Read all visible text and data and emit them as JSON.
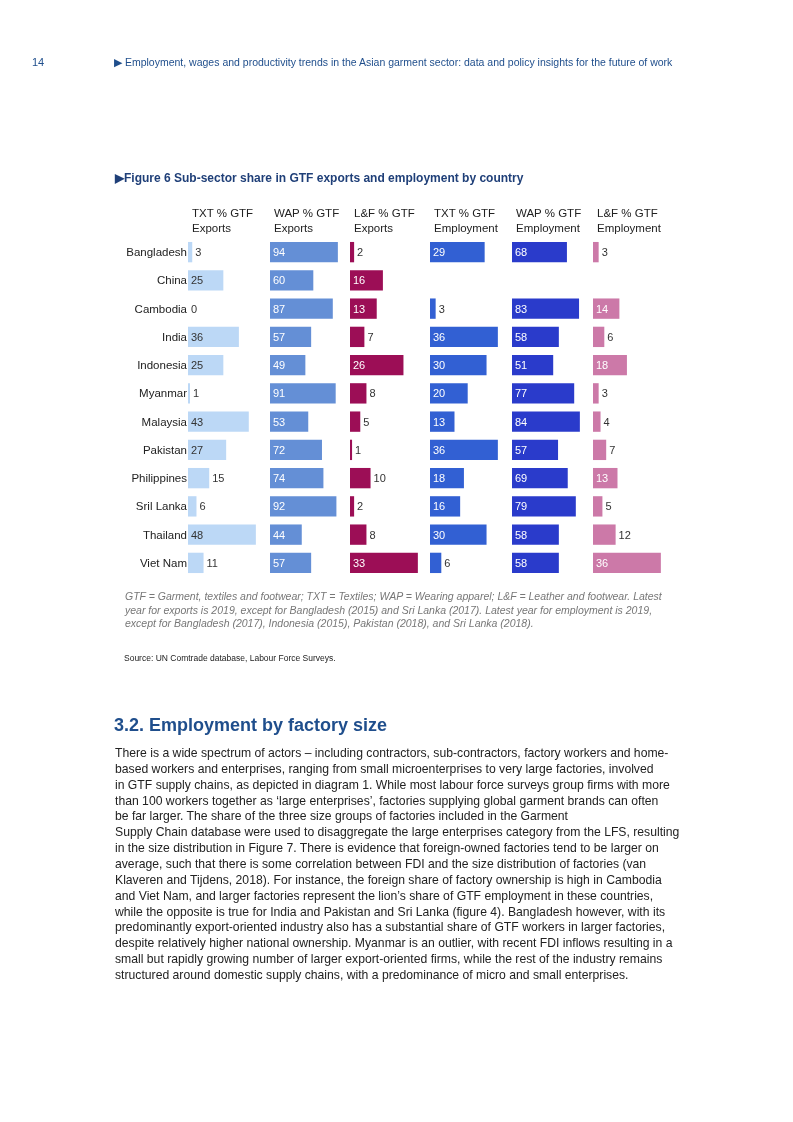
{
  "chart_data": [
    {
      "type": "bar",
      "orientation": "horizontal",
      "title": "TXT % GTF Exports",
      "categories": [
        "Bangladesh",
        "China",
        "Cambodia",
        "India",
        "Indonesia",
        "Myanmar",
        "Malaysia",
        "Pakistan",
        "Philippines",
        "Sril Lanka",
        "Thailand",
        "Viet Nam"
      ],
      "values": [
        3,
        25,
        0,
        36,
        25,
        1,
        43,
        27,
        15,
        6,
        48,
        11
      ],
      "color": "#bcd8f6",
      "data_labels": true,
      "tick_labels": "y",
      "annotations": [
        "14",
        "▶ Employment, wages and productivity trends in the Asian garment sector: data and policy insights for the future of work",
        "▶Figure 6 Sub-sector share in GTF exports and employment by country",
        "GTF = Garment, textiles and footwear; TXT = Textiles; WAP = Wearing apparel; L&F = Leather and footwear. Latest\nyear for exports is 2019, except for Bangladesh (2015) and Sri Lanka (2017). Latest year for employment is 2019,\nexcept for Bangladesh (2017), Indonesia (2015), Pakistan (2018), and Sri Lanka (2018).",
        "Source: UN Comtrade database, Labour Force Surveys.",
        "3.2. Employment by factory size",
        "There is a wide spectrum of actors – including contractors, sub-contractors, factory workers and home-\nbased workers and enterprises, ranging from small microenterprises to very large factories, involved\nin GTF supply chains, as depicted in diagram 1. While most labour force surveys group firms with more\nthan 100 workers together as ‘large enterprises’, factories supplying global garment brands can often\nbe far larger. The share of the three size groups of factories included in the Garment\nSupply Chain database were used to disaggregate the large enterprises category from the LFS, resulting\nin the size distribution in Figure 7. There is evidence that foreign-owned factories tend to be larger on\naverage, such that there is some correlation between FDI and the size distribution of factories (van\nKlaveren and Tijdens, 2018). For instance, the foreign share of factory ownership is high in Cambodia\nand Viet Nam, and larger factories represent the lion’s share of GTF employment in these countries,\nwhile the opposite is true for India and Pakistan and Sri Lanka (figure 4). Bangladesh however, with its\npredominantly export-oriented industry also has a substantial share of GTF workers in larger factories,\ndespite relatively higher national ownership. Myanmar is an outlier, with recent FDI inflows resulting in a\nsmall but rapidly growing number of larger export-oriented firms, while the rest of the industry remains\nstructured around domestic supply chains, with a predominance of micro and small enterprises."
      ]
    },
    {
      "type": "bar",
      "orientation": "horizontal",
      "title": "WAP % GTF Exports",
      "values": [
        94,
        60,
        87,
        57,
        49,
        91,
        53,
        72,
        74,
        92,
        44,
        57
      ],
      "color": "#648fd6",
      "data_labels": true,
      "tick_labels": false
    },
    {
      "type": "bar",
      "orientation": "horizontal",
      "title": "L&F % GTF Exports",
      "values": [
        2,
        16,
        13,
        7,
        26,
        8,
        5,
        1,
        10,
        2,
        8,
        33
      ],
      "color": "#9c0e56",
      "data_labels": true,
      "tick_labels": false
    },
    {
      "type": "bar",
      "orientation": "horizontal",
      "title": "TXT % GTF Employment",
      "values": [
        29,
        null,
        3,
        36,
        30,
        20,
        13,
        36,
        18,
        16,
        30,
        6
      ],
      "color": "#3260d3",
      "data_labels": true,
      "tick_labels": false
    },
    {
      "type": "bar",
      "orientation": "horizontal",
      "title": "WAP % GTF Employment",
      "values": [
        68,
        null,
        83,
        58,
        51,
        77,
        84,
        57,
        69,
        79,
        58,
        58
      ],
      "color": "#2a3bcb",
      "data_labels": true,
      "tick_labels": false
    },
    {
      "type": "bar",
      "orientation": "horizontal",
      "title": "L&F % GTF Employment",
      "values": [
        3,
        null,
        14,
        6,
        18,
        3,
        4,
        7,
        13,
        5,
        12,
        36
      ],
      "color": "#cc79a8",
      "data_labels": true,
      "tick_labels": false
    }
  ]
}
